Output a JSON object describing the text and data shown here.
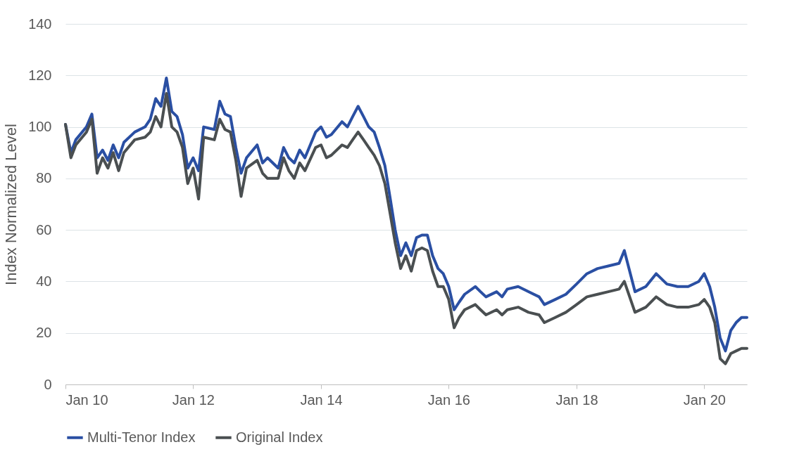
{
  "chart_data": {
    "type": "line",
    "ylabel": "Index Normalized Level",
    "x": [
      "2010-01",
      "2010-02",
      "2010-03",
      "2010-05",
      "2010-06",
      "2010-07",
      "2010-08",
      "2010-09",
      "2010-10",
      "2010-11",
      "2010-12",
      "2011-02",
      "2011-04",
      "2011-05",
      "2011-06",
      "2011-07",
      "2011-08",
      "2011-09",
      "2011-10",
      "2011-11",
      "2011-12",
      "2012-01",
      "2012-02",
      "2012-03",
      "2012-05",
      "2012-06",
      "2012-07",
      "2012-08",
      "2012-09",
      "2012-10",
      "2012-11",
      "2013-01",
      "2013-02",
      "2013-03",
      "2013-05",
      "2013-06",
      "2013-07",
      "2013-08",
      "2013-09",
      "2013-10",
      "2013-12",
      "2014-01",
      "2014-02",
      "2014-03",
      "2014-05",
      "2014-06",
      "2014-07",
      "2014-08",
      "2014-09",
      "2014-10",
      "2014-11",
      "2014-12",
      "2015-01",
      "2015-02",
      "2015-03",
      "2015-04",
      "2015-05",
      "2015-06",
      "2015-07",
      "2015-08",
      "2015-09",
      "2015-10",
      "2015-11",
      "2015-12",
      "2016-01",
      "2016-02",
      "2016-03",
      "2016-04",
      "2016-06",
      "2016-07",
      "2016-08",
      "2016-10",
      "2016-11",
      "2016-12",
      "2017-02",
      "2017-04",
      "2017-06",
      "2017-07",
      "2017-09",
      "2017-11",
      "2018-01",
      "2018-03",
      "2018-05",
      "2018-07",
      "2018-09",
      "2018-10",
      "2018-12",
      "2019-02",
      "2019-04",
      "2019-06",
      "2019-08",
      "2019-10",
      "2019-12",
      "2020-01",
      "2020-02",
      "2020-03",
      "2020-04",
      "2020-05",
      "2020-06",
      "2020-07",
      "2020-08",
      "2020-09"
    ],
    "series": [
      {
        "name": "Multi-Tenor Index",
        "color": "#2a4fa3",
        "values": [
          101,
          90,
          95,
          100,
          105,
          88,
          91,
          87,
          93,
          88,
          94,
          98,
          100,
          103,
          111,
          108,
          119,
          106,
          104,
          97,
          84,
          88,
          83,
          100,
          99,
          110,
          105,
          104,
          92,
          82,
          88,
          93,
          86,
          88,
          84,
          92,
          88,
          86,
          91,
          88,
          98,
          100,
          96,
          97,
          102,
          100,
          104,
          108,
          104,
          100,
          98,
          92,
          85,
          72,
          60,
          50,
          55,
          50,
          57,
          58,
          58,
          50,
          45,
          43,
          38,
          29,
          32,
          35,
          38,
          36,
          34,
          36,
          34,
          37,
          38,
          36,
          34,
          31,
          33,
          35,
          39,
          43,
          45,
          46,
          47,
          52,
          36,
          38,
          43,
          39,
          38,
          38,
          40,
          43,
          38,
          30,
          18,
          13,
          21,
          24,
          26,
          26
        ]
      },
      {
        "name": "Original Index",
        "color": "#4a4f51",
        "values": [
          101,
          88,
          93,
          98,
          103,
          82,
          88,
          84,
          90,
          83,
          90,
          95,
          96,
          98,
          104,
          100,
          113,
          100,
          98,
          92,
          78,
          84,
          72,
          96,
          95,
          103,
          99,
          98,
          87,
          73,
          84,
          87,
          82,
          80,
          80,
          88,
          83,
          80,
          86,
          83,
          92,
          93,
          88,
          89,
          93,
          92,
          95,
          98,
          95,
          92,
          89,
          85,
          78,
          66,
          55,
          45,
          50,
          44,
          52,
          53,
          52,
          44,
          38,
          38,
          33,
          22,
          26,
          29,
          31,
          29,
          27,
          29,
          27,
          29,
          30,
          28,
          27,
          24,
          26,
          28,
          31,
          34,
          35,
          36,
          37,
          40,
          28,
          30,
          34,
          31,
          30,
          30,
          31,
          33,
          30,
          24,
          10,
          8,
          12,
          13,
          14,
          14
        ]
      }
    ],
    "xlim": [
      "2010-01",
      "2020-09"
    ],
    "xticks": [
      {
        "value": "2010-01",
        "label": "Jan 10"
      },
      {
        "value": "2012-01",
        "label": "Jan 12"
      },
      {
        "value": "2014-01",
        "label": "Jan 14"
      },
      {
        "value": "2016-01",
        "label": "Jan 16"
      },
      {
        "value": "2018-01",
        "label": "Jan 18"
      },
      {
        "value": "2020-01",
        "label": "Jan 20"
      }
    ],
    "ylim": [
      0,
      140
    ],
    "yticks": [
      0,
      20,
      40,
      60,
      80,
      100,
      120,
      140
    ],
    "grid": "y",
    "legend": "bottom",
    "marker": "none",
    "line_style": "solid"
  }
}
